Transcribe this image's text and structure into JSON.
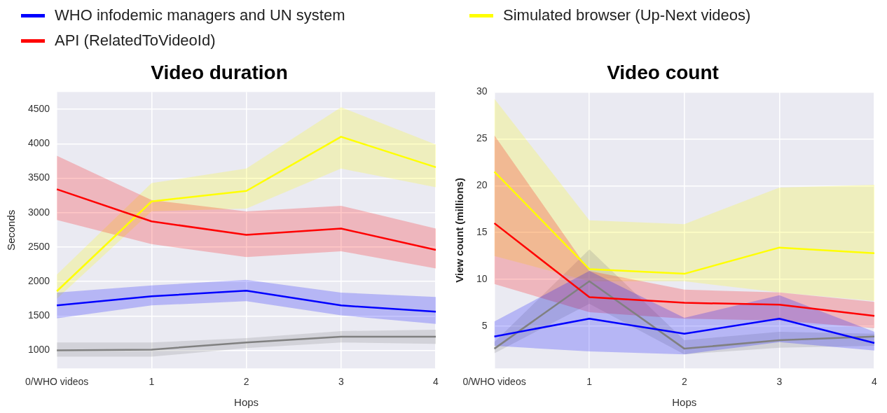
{
  "chart_data": [
    {
      "type": "line",
      "title": "Video duration",
      "xlabel": "Hops",
      "ylabel": "Seconds",
      "categories": [
        "0/WHO videos",
        "1",
        "2",
        "3",
        "4"
      ],
      "ylim": [
        740,
        4750
      ],
      "yticks": [
        1000,
        1500,
        2000,
        2500,
        3000,
        3500,
        4000,
        4500
      ],
      "grid": true,
      "legend": "top",
      "marker": "none",
      "series": [
        {
          "name": "WHO infodemic managers and UN system",
          "color": "#0000ff",
          "values": [
            1653,
            1786,
            1868,
            1653,
            1562
          ],
          "lower": [
            1467,
            1653,
            1715,
            1509,
            1385
          ],
          "upper": [
            1840,
            1943,
            2026,
            1840,
            1777
          ]
        },
        {
          "name": "API (RelatedToVideoId)",
          "color": "#ff0000",
          "values": [
            3340,
            2873,
            2679,
            2770,
            2460
          ],
          "lower": [
            2895,
            2543,
            2356,
            2440,
            2191
          ],
          "upper": [
            3825,
            3183,
            3018,
            3100,
            2770
          ]
        },
        {
          "color": "#808080",
          "values": [
            1000,
            1012,
            1116,
            1199,
            1199
          ],
          "lower": [
            909,
            909,
            1033,
            1116,
            1095
          ],
          "upper": [
            1116,
            1116,
            1178,
            1281,
            1302
          ]
        },
        {
          "name": "Simulated browser (Up-Next videos)",
          "color": "#ffff00",
          "values": [
            1860,
            3163,
            3316,
            4102,
            3660
          ],
          "lower": [
            1750,
            3020,
            3060,
            3640,
            3370
          ],
          "upper": [
            2100,
            3430,
            3640,
            4530,
            3990
          ]
        }
      ]
    },
    {
      "type": "line",
      "title": "Video count",
      "xlabel": "Hops",
      "ylabel": "View count (millions)",
      "categories": [
        "0/WHO videos",
        "1",
        "2",
        "3",
        "4"
      ],
      "ylim": [
        0.5,
        30
      ],
      "yticks": [
        5,
        10,
        15,
        20,
        25,
        30
      ],
      "grid": true,
      "marker": "none",
      "series": [
        {
          "color": "#0000ff",
          "values": [
            3.9,
            5.8,
            4.2,
            5.8,
            3.2
          ],
          "lower": [
            2.9,
            2.3,
            2.0,
            3.3,
            2.4
          ],
          "upper": [
            5.5,
            10.9,
            5.9,
            8.3,
            4.4
          ]
        },
        {
          "color": "#ff0000",
          "values": [
            16.0,
            8.1,
            7.5,
            7.3,
            6.1
          ],
          "lower": [
            9.5,
            6.5,
            5.8,
            5.6,
            4.8
          ],
          "upper": [
            25.4,
            10.9,
            8.9,
            8.6,
            7.6
          ]
        },
        {
          "color": "#808080",
          "values": [
            2.6,
            9.8,
            2.6,
            3.5,
            3.9
          ],
          "lower": [
            2.1,
            7.4,
            2.0,
            2.7,
            2.9
          ],
          "upper": [
            3.3,
            13.2,
            3.5,
            4.4,
            4.2
          ]
        },
        {
          "color": "#ffff00",
          "values": [
            21.5,
            11.1,
            10.6,
            13.4,
            12.8
          ],
          "lower": [
            12.5,
            9.8,
            9.8,
            8.6,
            7.7
          ],
          "upper": [
            29.3,
            16.3,
            15.9,
            19.8,
            20.1
          ]
        }
      ]
    }
  ]
}
